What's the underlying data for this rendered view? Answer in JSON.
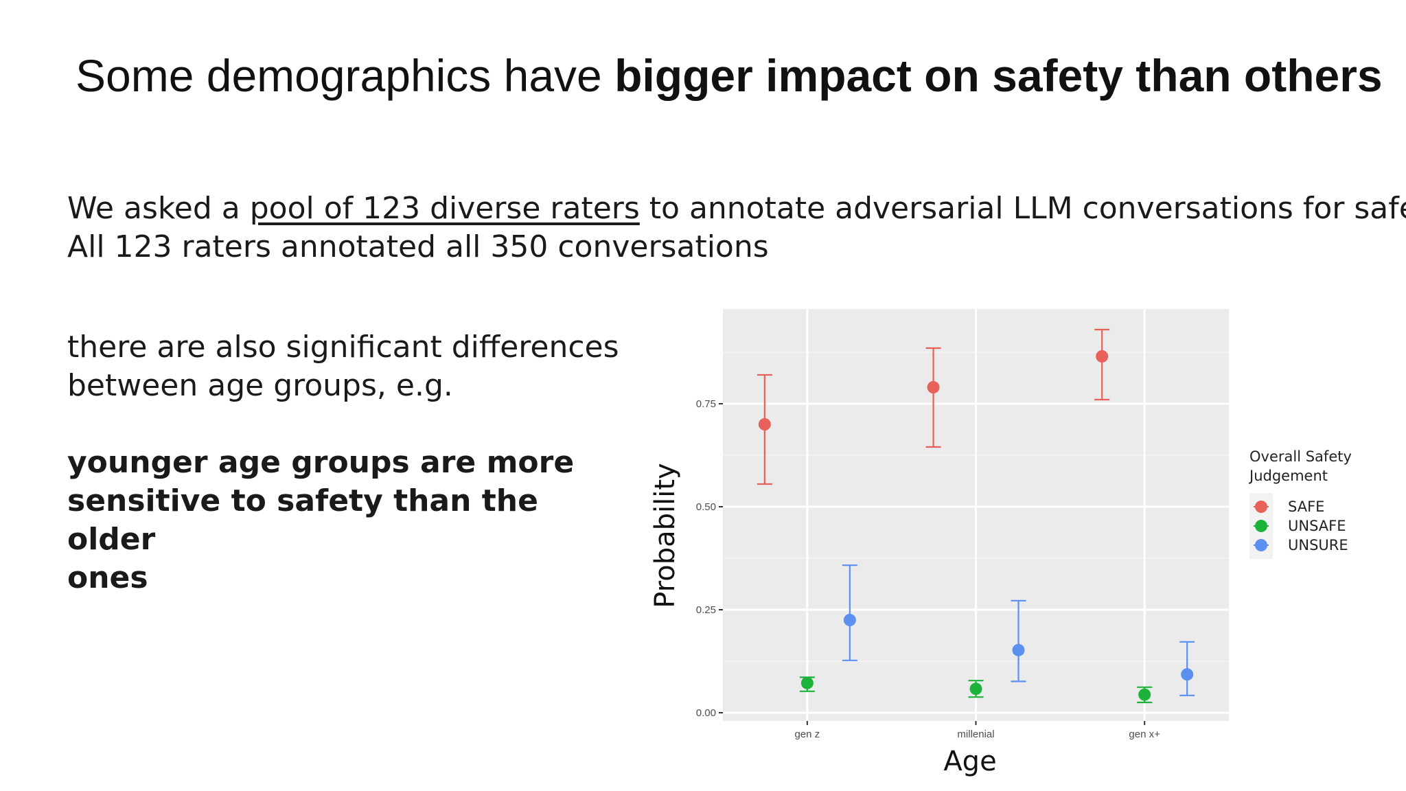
{
  "slide": {
    "title_normal": "Some demographics have ",
    "title_bold": "bigger impact on safety than others",
    "intro_before": "We asked a ",
    "intro_link": "pool of 123 diverse raters",
    "intro_after": " to annotate adversarial LLM conversations for safety.",
    "intro_line2": "All 123 raters annotated all 350 conversations",
    "note_line1": "there are also significant differences",
    "note_line2": "between age groups, e.g.",
    "emph_line1": "younger age groups are more",
    "emph_line2": "sensitive to safety than the older",
    "emph_line3": "ones"
  },
  "chart_data": {
    "type": "scatter",
    "title": "",
    "xlabel": "Age",
    "ylabel": "Probability",
    "categories": [
      "gen z",
      "millenial",
      "gen x+"
    ],
    "ylim": [
      -0.02,
      0.98
    ],
    "yticks": [
      0.0,
      0.25,
      0.5,
      0.75
    ],
    "ytick_labels": [
      "0.00",
      "0.25",
      "0.50",
      "0.75"
    ],
    "grid": true,
    "legend_title": "Overall Safety Judgement",
    "legend_placement": "right",
    "series": [
      {
        "name": "SAFE",
        "color": "#e8605a",
        "values": [
          0.7,
          0.79,
          0.865
        ],
        "lower": [
          0.555,
          0.645,
          0.76
        ],
        "upper": [
          0.82,
          0.885,
          0.93
        ]
      },
      {
        "name": "UNSAFE",
        "color": "#1db33a",
        "values": [
          0.072,
          0.058,
          0.044
        ],
        "lower": [
          0.052,
          0.038,
          0.025
        ],
        "upper": [
          0.086,
          0.078,
          0.062
        ]
      },
      {
        "name": "UNSURE",
        "color": "#5b8ff0",
        "values": [
          0.225,
          0.152,
          0.093
        ],
        "lower": [
          0.127,
          0.076,
          0.042
        ],
        "upper": [
          0.358,
          0.272,
          0.172
        ]
      }
    ]
  }
}
